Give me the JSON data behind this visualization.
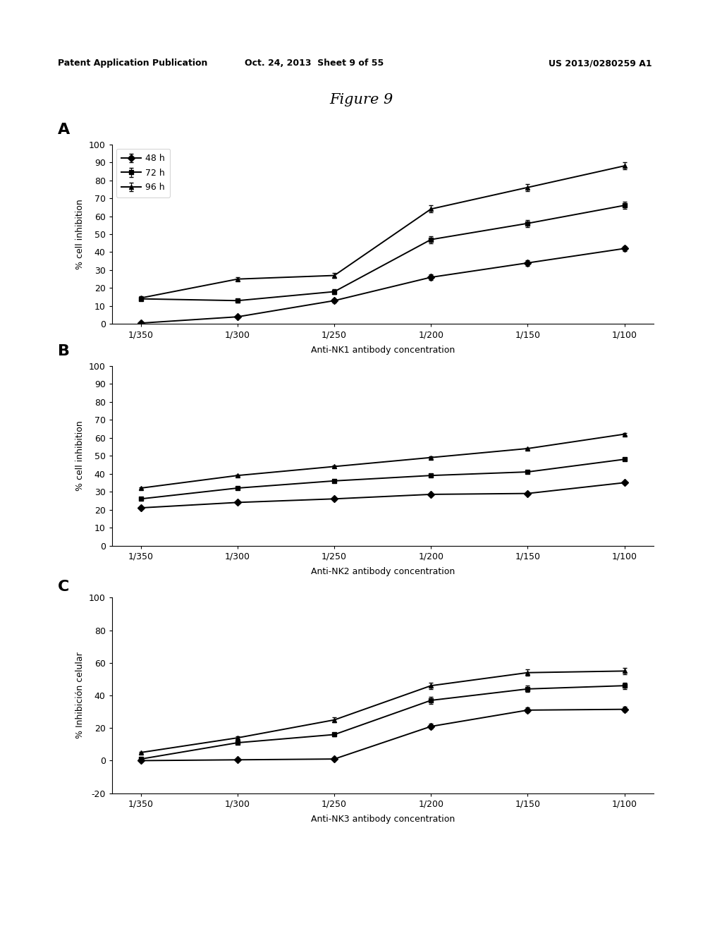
{
  "header_left": "Patent Application Publication",
  "header_mid": "Oct. 24, 2013  Sheet 9 of 55",
  "header_right": "US 2013/0280259 A1",
  "figure_title": "Figure 9",
  "x_labels": [
    "1/350",
    "1/300",
    "1/250",
    "1/200",
    "1/150",
    "1/100"
  ],
  "x_positions": [
    0,
    1,
    2,
    3,
    4,
    5
  ],
  "panel_A": {
    "label": "A",
    "ylabel": "% cell inhibition",
    "xlabel": "Anti-NK1 antibody concentration",
    "ylim": [
      0,
      100
    ],
    "yticks": [
      0,
      10,
      20,
      30,
      40,
      50,
      60,
      70,
      80,
      90,
      100
    ],
    "legend": [
      "48 h",
      "72 h",
      "96 h"
    ],
    "series": {
      "48h": [
        0.5,
        4.0,
        13.0,
        26.0,
        34.0,
        42.0
      ],
      "72h": [
        14.0,
        13.0,
        18.0,
        47.0,
        56.0,
        66.0
      ],
      "96h": [
        14.5,
        25.0,
        27.0,
        64.0,
        76.0,
        88.0
      ]
    },
    "errors": {
      "48h": [
        0.5,
        0.5,
        1.0,
        1.5,
        1.5,
        1.5
      ],
      "72h": [
        1.0,
        1.0,
        1.5,
        2.0,
        2.0,
        2.0
      ],
      "96h": [
        1.0,
        1.0,
        1.5,
        2.0,
        2.0,
        2.0
      ]
    }
  },
  "panel_B": {
    "label": "B",
    "ylabel": "% cell inhibition",
    "xlabel": "Anti-NK2 antibody concentration",
    "ylim": [
      0,
      100
    ],
    "yticks": [
      0,
      10,
      20,
      30,
      40,
      50,
      60,
      70,
      80,
      90,
      100
    ],
    "series": {
      "48h": [
        21.0,
        24.0,
        26.0,
        28.5,
        29.0,
        35.0
      ],
      "72h": [
        26.0,
        32.0,
        36.0,
        39.0,
        41.0,
        48.0
      ],
      "96h": [
        32.0,
        39.0,
        44.0,
        49.0,
        54.0,
        62.0
      ]
    },
    "errors": {
      "48h": [
        0.5,
        0.5,
        0.5,
        0.5,
        0.5,
        0.5
      ],
      "72h": [
        0.5,
        0.5,
        0.5,
        0.5,
        0.5,
        0.5
      ],
      "96h": [
        0.5,
        0.5,
        0.5,
        0.5,
        0.5,
        0.5
      ]
    }
  },
  "panel_C": {
    "label": "C",
    "ylabel": "% Inhibición celular",
    "xlabel": "Anti-NK3 antibody concentration",
    "ylim": [
      -20,
      100
    ],
    "yticks": [
      -20,
      0,
      20,
      40,
      60,
      80,
      100
    ],
    "series": {
      "48h": [
        0.0,
        0.5,
        1.0,
        21.0,
        31.0,
        31.5
      ],
      "72h": [
        1.0,
        11.0,
        16.0,
        37.0,
        44.0,
        46.0
      ],
      "96h": [
        5.0,
        14.0,
        25.0,
        46.0,
        54.0,
        55.0
      ]
    },
    "errors": {
      "48h": [
        0.5,
        0.5,
        0.5,
        1.5,
        1.5,
        1.5
      ],
      "72h": [
        0.5,
        1.0,
        1.0,
        2.0,
        2.0,
        2.0
      ],
      "96h": [
        0.5,
        1.0,
        1.5,
        2.0,
        2.0,
        2.0
      ]
    }
  }
}
